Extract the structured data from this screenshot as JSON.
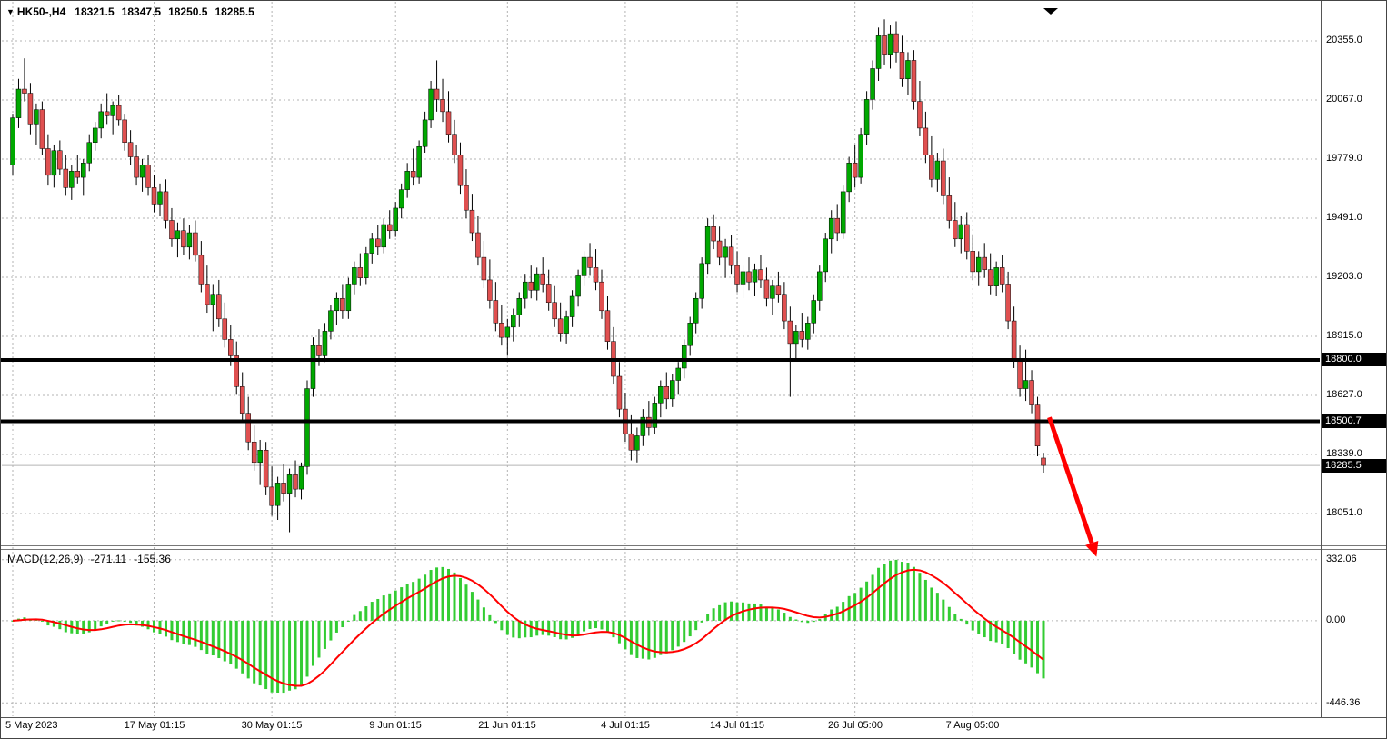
{
  "header": {
    "marker": "▼",
    "symbol": "HK50-,H4",
    "open": "18321.5",
    "high": "18347.5",
    "low": "18250.5",
    "close": "18285.5"
  },
  "price_axis": {
    "tick_labels": [
      "20355.0",
      "20067.0",
      "19779.0",
      "19491.0",
      "19203.0",
      "18915.0",
      "18627.0",
      "18339.0",
      "18051.0"
    ],
    "badges": [
      {
        "label": "18800.0"
      },
      {
        "label": "18500.7"
      },
      {
        "label": "18285.5"
      }
    ]
  },
  "macd_panel": {
    "label": "MACD(12,26,9)",
    "macd_value": "-271.11",
    "signal_value": "-155.36",
    "tick_labels": [
      "332.06",
      "0.00",
      "-446.36"
    ]
  },
  "time_axis": {
    "labels": [
      "5 May 2023",
      "17 May 01:15",
      "30 May 01:15",
      "9 Jun 01:15",
      "21 Jun 01:15",
      "4 Jul 01:15",
      "14 Jul 01:15",
      "26 Jul 05:00",
      "7 Aug 05:00"
    ]
  },
  "colors": {
    "up": "#00A800",
    "down": "#E05050",
    "wick": "#000000",
    "histogram": "#33CC33",
    "signal_line": "#FF0000",
    "grid": "#B3B3B3",
    "level_line": "#000000",
    "arrow": "#FF0000",
    "badge_bg": "#000000",
    "badge_text": "#FFFFFF",
    "background": "#FFFFFF",
    "text": "#000000"
  },
  "chart_data": {
    "type": "candlestick",
    "title": "HK50-,H4",
    "symbol": "HK50-",
    "timeframe": "H4",
    "last_ohlc": {
      "open": 18321.5,
      "high": 18347.5,
      "low": 18250.5,
      "close": 18285.5
    },
    "y_axis": {
      "ticks": [
        20355.0,
        20067.0,
        19779.0,
        19491.0,
        19203.0,
        18915.0,
        18627.0,
        18339.0,
        18051.0
      ],
      "visible_range": [
        17880,
        20520
      ]
    },
    "x_axis": {
      "labels": [
        "5 May 2023",
        "17 May 01:15",
        "30 May 01:15",
        "9 Jun 01:15",
        "21 Jun 01:15",
        "4 Jul 01:15",
        "14 Jul 01:15",
        "26 Jul 05:00",
        "7 Aug 05:00"
      ],
      "label_candle_indices": [
        0,
        24,
        44,
        65,
        84,
        104,
        123,
        143,
        163
      ]
    },
    "horizontal_levels": [
      18800.0,
      18500.7
    ],
    "current_price": 18285.5,
    "ohlc": [
      [
        19750,
        20000,
        19700,
        19980
      ],
      [
        19980,
        20170,
        19930,
        20120
      ],
      [
        20120,
        20270,
        20060,
        20100
      ],
      [
        20100,
        20150,
        19900,
        19950
      ],
      [
        19950,
        20050,
        19850,
        20020
      ],
      [
        20020,
        20060,
        19800,
        19830
      ],
      [
        19830,
        19900,
        19650,
        19700
      ],
      [
        19700,
        19850,
        19640,
        19820
      ],
      [
        19820,
        19870,
        19700,
        19730
      ],
      [
        19730,
        19800,
        19600,
        19640
      ],
      [
        19640,
        19750,
        19580,
        19720
      ],
      [
        19720,
        19800,
        19660,
        19690
      ],
      [
        19690,
        19780,
        19600,
        19760
      ],
      [
        19760,
        19900,
        19720,
        19860
      ],
      [
        19860,
        19960,
        19820,
        19930
      ],
      [
        19930,
        20050,
        19880,
        20010
      ],
      [
        20010,
        20100,
        19950,
        19990
      ],
      [
        19990,
        20060,
        19900,
        20040
      ],
      [
        20040,
        20090,
        19940,
        19970
      ],
      [
        19970,
        20000,
        19820,
        19860
      ],
      [
        19860,
        19920,
        19750,
        19790
      ],
      [
        19790,
        19850,
        19650,
        19690
      ],
      [
        19690,
        19780,
        19620,
        19750
      ],
      [
        19750,
        19800,
        19600,
        19640
      ],
      [
        19640,
        19700,
        19520,
        19560
      ],
      [
        19560,
        19660,
        19500,
        19620
      ],
      [
        19620,
        19680,
        19440,
        19480
      ],
      [
        19480,
        19540,
        19350,
        19390
      ],
      [
        19390,
        19470,
        19300,
        19430
      ],
      [
        19430,
        19490,
        19310,
        19350
      ],
      [
        19350,
        19460,
        19290,
        19420
      ],
      [
        19420,
        19480,
        19280,
        19310
      ],
      [
        19310,
        19380,
        19130,
        19170
      ],
      [
        19170,
        19260,
        19030,
        19070
      ],
      [
        19070,
        19170,
        18940,
        19120
      ],
      [
        19120,
        19190,
        18960,
        19000
      ],
      [
        19000,
        19080,
        18860,
        18900
      ],
      [
        18900,
        18970,
        18770,
        18820
      ],
      [
        18820,
        18890,
        18630,
        18670
      ],
      [
        18670,
        18740,
        18500,
        18540
      ],
      [
        18540,
        18620,
        18360,
        18400
      ],
      [
        18400,
        18480,
        18260,
        18300
      ],
      [
        18300,
        18410,
        18190,
        18360
      ],
      [
        18360,
        18400,
        18140,
        18180
      ],
      [
        18180,
        18280,
        18040,
        18090
      ],
      [
        18090,
        18230,
        18020,
        18200
      ],
      [
        18200,
        18290,
        18110,
        18150
      ],
      [
        18150,
        18270,
        17960,
        18240
      ],
      [
        18240,
        18310,
        18130,
        18170
      ],
      [
        18170,
        18300,
        18120,
        18280
      ],
      [
        18280,
        18700,
        18240,
        18660
      ],
      [
        18660,
        18910,
        18620,
        18870
      ],
      [
        18870,
        18950,
        18770,
        18820
      ],
      [
        18820,
        18980,
        18790,
        18940
      ],
      [
        18940,
        19070,
        18900,
        19040
      ],
      [
        19040,
        19130,
        18970,
        19100
      ],
      [
        19100,
        19170,
        19000,
        19040
      ],
      [
        19040,
        19200,
        19000,
        19170
      ],
      [
        19170,
        19280,
        19120,
        19250
      ],
      [
        19250,
        19320,
        19160,
        19200
      ],
      [
        19200,
        19350,
        19170,
        19320
      ],
      [
        19320,
        19420,
        19270,
        19390
      ],
      [
        19390,
        19460,
        19310,
        19350
      ],
      [
        19350,
        19490,
        19320,
        19460
      ],
      [
        19460,
        19530,
        19390,
        19430
      ],
      [
        19430,
        19570,
        19400,
        19540
      ],
      [
        19540,
        19660,
        19490,
        19630
      ],
      [
        19630,
        19760,
        19590,
        19720
      ],
      [
        19720,
        19830,
        19650,
        19690
      ],
      [
        19690,
        19870,
        19660,
        19840
      ],
      [
        19840,
        20010,
        19810,
        19970
      ],
      [
        19970,
        20160,
        19930,
        20120
      ],
      [
        20120,
        20260,
        20010,
        20070
      ],
      [
        20070,
        20170,
        19960,
        20010
      ],
      [
        20010,
        20110,
        19860,
        19900
      ],
      [
        19900,
        19970,
        19760,
        19800
      ],
      [
        19800,
        19860,
        19610,
        19650
      ],
      [
        19650,
        19730,
        19490,
        19530
      ],
      [
        19530,
        19610,
        19380,
        19420
      ],
      [
        19420,
        19500,
        19260,
        19300
      ],
      [
        19300,
        19380,
        19150,
        19190
      ],
      [
        19190,
        19290,
        19050,
        19090
      ],
      [
        19090,
        19180,
        18940,
        18980
      ],
      [
        18980,
        19070,
        18870,
        18910
      ],
      [
        18910,
        19000,
        18820,
        18960
      ],
      [
        18960,
        19050,
        18890,
        19020
      ],
      [
        19020,
        19130,
        18960,
        19100
      ],
      [
        19100,
        19220,
        19050,
        19180
      ],
      [
        19180,
        19260,
        19100,
        19140
      ],
      [
        19140,
        19250,
        19090,
        19220
      ],
      [
        19220,
        19300,
        19130,
        19170
      ],
      [
        19170,
        19240,
        19040,
        19080
      ],
      [
        19080,
        19160,
        18960,
        19000
      ],
      [
        19000,
        19080,
        18890,
        18930
      ],
      [
        18930,
        19040,
        18880,
        19010
      ],
      [
        19010,
        19140,
        18960,
        19110
      ],
      [
        19110,
        19240,
        19060,
        19210
      ],
      [
        19210,
        19330,
        19160,
        19300
      ],
      [
        19300,
        19370,
        19210,
        19250
      ],
      [
        19250,
        19340,
        19140,
        19180
      ],
      [
        19180,
        19240,
        19000,
        19040
      ],
      [
        19040,
        19110,
        18850,
        18890
      ],
      [
        18890,
        18960,
        18680,
        18720
      ],
      [
        18720,
        18790,
        18520,
        18560
      ],
      [
        18560,
        18640,
        18400,
        18440
      ],
      [
        18440,
        18530,
        18310,
        18360
      ],
      [
        18360,
        18470,
        18300,
        18430
      ],
      [
        18430,
        18560,
        18380,
        18520
      ],
      [
        18520,
        18600,
        18430,
        18470
      ],
      [
        18470,
        18620,
        18440,
        18590
      ],
      [
        18590,
        18700,
        18520,
        18670
      ],
      [
        18670,
        18740,
        18560,
        18610
      ],
      [
        18610,
        18730,
        18570,
        18700
      ],
      [
        18700,
        18790,
        18630,
        18760
      ],
      [
        18760,
        18900,
        18710,
        18870
      ],
      [
        18870,
        19010,
        18820,
        18980
      ],
      [
        18980,
        19130,
        18930,
        19100
      ],
      [
        19100,
        19300,
        19050,
        19270
      ],
      [
        19270,
        19490,
        19220,
        19450
      ],
      [
        19450,
        19510,
        19340,
        19380
      ],
      [
        19380,
        19450,
        19260,
        19300
      ],
      [
        19300,
        19390,
        19200,
        19350
      ],
      [
        19350,
        19410,
        19220,
        19260
      ],
      [
        19260,
        19330,
        19130,
        19170
      ],
      [
        19170,
        19260,
        19100,
        19230
      ],
      [
        19230,
        19300,
        19140,
        19180
      ],
      [
        19180,
        19270,
        19110,
        19240
      ],
      [
        19240,
        19310,
        19150,
        19190
      ],
      [
        19190,
        19250,
        19060,
        19100
      ],
      [
        19100,
        19190,
        19020,
        19160
      ],
      [
        19160,
        19230,
        19080,
        19120
      ],
      [
        19120,
        19180,
        18950,
        18990
      ],
      [
        18990,
        19060,
        18620,
        18880
      ],
      [
        18880,
        18970,
        18800,
        18940
      ],
      [
        18940,
        19030,
        18860,
        18900
      ],
      [
        18900,
        19010,
        18850,
        18980
      ],
      [
        18980,
        19120,
        18930,
        19090
      ],
      [
        19090,
        19260,
        19040,
        19230
      ],
      [
        19230,
        19420,
        19180,
        19390
      ],
      [
        19390,
        19530,
        19320,
        19490
      ],
      [
        19490,
        19560,
        19380,
        19420
      ],
      [
        19420,
        19650,
        19390,
        19620
      ],
      [
        19620,
        19790,
        19570,
        19760
      ],
      [
        19760,
        19850,
        19640,
        19690
      ],
      [
        19690,
        19930,
        19660,
        19900
      ],
      [
        19900,
        20110,
        19850,
        20070
      ],
      [
        20070,
        20260,
        20020,
        20220
      ],
      [
        20220,
        20420,
        20160,
        20380
      ],
      [
        20380,
        20460,
        20240,
        20290
      ],
      [
        20290,
        20430,
        20220,
        20390
      ],
      [
        20390,
        20450,
        20250,
        20300
      ],
      [
        20300,
        20380,
        20130,
        20170
      ],
      [
        20170,
        20300,
        20090,
        20260
      ],
      [
        20260,
        20310,
        20020,
        20060
      ],
      [
        20060,
        20160,
        19890,
        19930
      ],
      [
        19930,
        20010,
        19760,
        19800
      ],
      [
        19800,
        19890,
        19640,
        19680
      ],
      [
        19680,
        19810,
        19620,
        19770
      ],
      [
        19770,
        19830,
        19560,
        19600
      ],
      [
        19600,
        19690,
        19440,
        19480
      ],
      [
        19480,
        19570,
        19350,
        19390
      ],
      [
        19390,
        19500,
        19320,
        19460
      ],
      [
        19460,
        19520,
        19290,
        19330
      ],
      [
        19330,
        19410,
        19190,
        19230
      ],
      [
        19230,
        19330,
        19160,
        19300
      ],
      [
        19300,
        19370,
        19200,
        19240
      ],
      [
        19240,
        19320,
        19120,
        19160
      ],
      [
        19160,
        19280,
        19110,
        19250
      ],
      [
        19250,
        19310,
        19130,
        19170
      ],
      [
        19170,
        19230,
        18950,
        18990
      ],
      [
        18990,
        19060,
        18760,
        18800
      ],
      [
        18800,
        18870,
        18620,
        18660
      ],
      [
        18660,
        18850,
        18600,
        18700
      ],
      [
        18700,
        18750,
        18540,
        18580
      ],
      [
        18580,
        18620,
        18330,
        18380
      ],
      [
        18321.5,
        18347.5,
        18250.5,
        18285.5
      ]
    ],
    "indicator": {
      "type": "macd",
      "name": "MACD(12,26,9)",
      "fast": 12,
      "slow": 26,
      "signal": 9,
      "current_macd": -271.11,
      "current_signal": -155.36,
      "axis_ticks": [
        332.06,
        0.0,
        -446.36
      ],
      "visible_range": [
        -480,
        355
      ],
      "note": "histogram (MACD line) and red signal line are computed from ohlc closes"
    },
    "annotations": [
      {
        "type": "arrow",
        "direction": "down-right",
        "from": {
          "index": 176,
          "price": 18520
        },
        "to": {
          "index": 184,
          "price": 17840
        }
      }
    ]
  }
}
